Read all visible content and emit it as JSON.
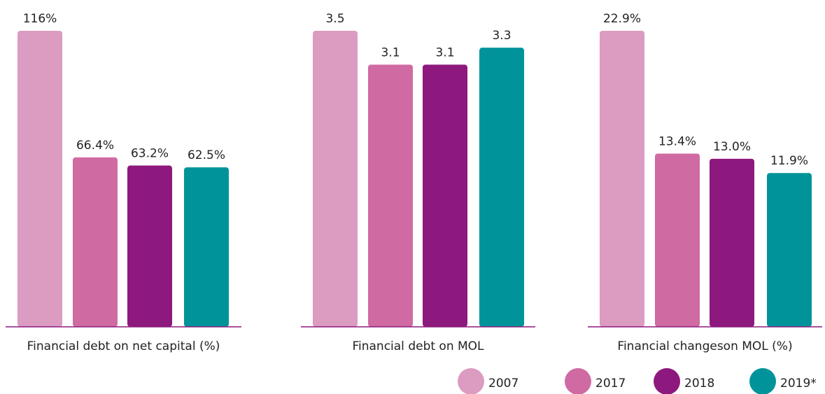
{
  "chart_data": [
    {
      "type": "bar",
      "xlabel": "Financial debt on net capital (%)",
      "values": [
        116,
        66.4,
        63.2,
        62.5
      ],
      "value_labels": [
        "116%",
        "66.4%",
        "63.2%",
        "62.5%"
      ]
    },
    {
      "type": "bar",
      "xlabel": "Financial debt on MOL",
      "values": [
        3.5,
        3.1,
        3.1,
        3.3
      ]
    },
    {
      "type": "bar",
      "xlabel": "Financial changeson MOL (%)",
      "values": [
        22.9,
        13.4,
        13.0,
        11.9
      ],
      "value_labels": [
        "22.9%",
        "13.4%",
        "13.0%",
        "11.9%"
      ]
    }
  ],
  "legend": {
    "labels": [
      "2007",
      "2017",
      "2018",
      "2019*"
    ],
    "colors": [
      "#dc9bc1",
      "#d06aa3",
      "#8e197e",
      "#00949a"
    ]
  }
}
